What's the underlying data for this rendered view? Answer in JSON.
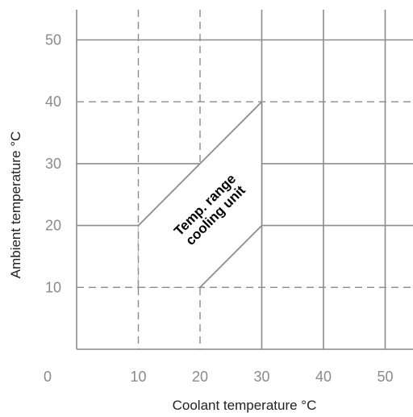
{
  "chart_data": {
    "type": "area",
    "title": "",
    "xlabel": "Coolant temperature °C",
    "ylabel": "Ambient temperature °C",
    "xlim": [
      0,
      55
    ],
    "ylim": [
      0,
      55
    ],
    "x_ticks": [
      0,
      10,
      20,
      30,
      40,
      50
    ],
    "y_ticks": [
      10,
      20,
      30,
      40,
      50
    ],
    "solid_gridlines_x": [
      30,
      40,
      50
    ],
    "dashed_gridlines_x": [
      10,
      20
    ],
    "solid_gridlines_y": [
      20,
      30,
      50
    ],
    "dashed_gridlines_y": [
      10,
      40
    ],
    "grid": true,
    "region": {
      "name": "",
      "label": "Temp. range\ncooling unit",
      "label_line1": "Temp. range",
      "label_line2": "cooling unit",
      "polygon": [
        [
          10,
          10
        ],
        [
          20,
          10
        ],
        [
          30,
          20
        ],
        [
          30,
          40
        ],
        [
          20,
          30
        ],
        [
          10,
          20
        ]
      ],
      "bounded_by": "solid lines with slope 1 on the upper-left and lower-right"
    },
    "colors": {
      "grid_solid": "#8c8c8c",
      "grid_dashed": "#8c8c8c",
      "boundary": "#8c8c8c",
      "tick_text": "#8a8a8a",
      "label_text": "#222222"
    }
  }
}
